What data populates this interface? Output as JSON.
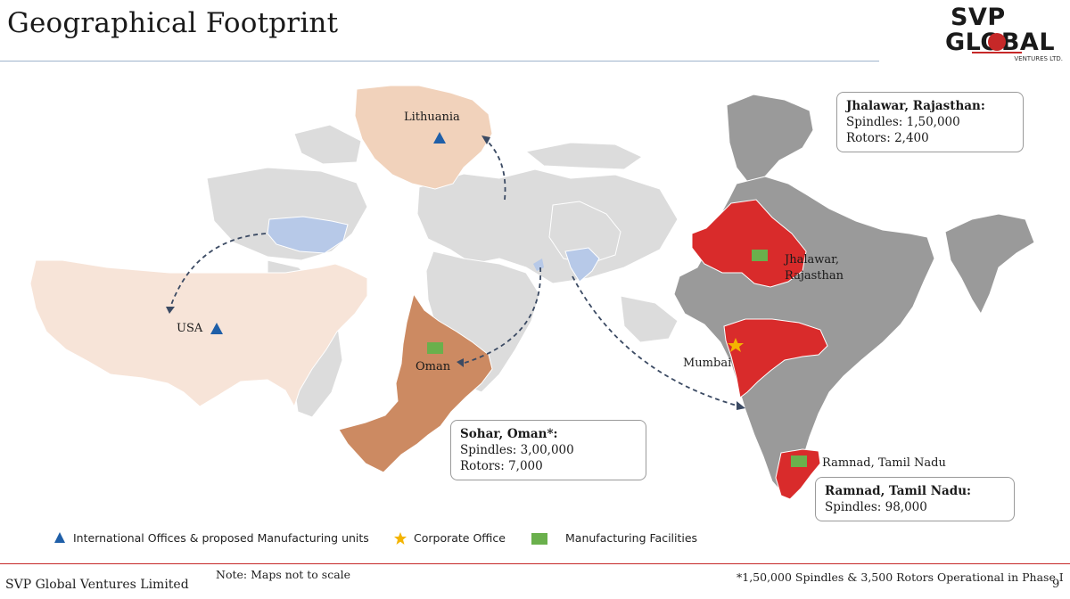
{
  "header": {
    "title": "Geographical Footprint"
  },
  "logo": {
    "line1": "SVP",
    "line2": "GLOBAL",
    "line3": "VENTURES LTD."
  },
  "map_labels": {
    "lithuania": "Lithuania",
    "usa": "USA",
    "oman": "Oman",
    "jhalawar_line1": "Jhalawar,",
    "jhalawar_line2": "Rajasthan",
    "mumbai": "Mumbai",
    "ramnad": "Ramnad, Tamil Nadu"
  },
  "callouts": {
    "jhalawar": {
      "title": "Jhalawar, Rajasthan:",
      "line1": "Spindles: 1,50,000",
      "line2": "Rotors: 2,400"
    },
    "sohar": {
      "title": "Sohar, Oman*:",
      "line1": "Spindles: 3,00,000",
      "line2": "Rotors: 7,000"
    },
    "ramnad": {
      "title": "Ramnad, Tamil Nadu:",
      "line1": "Spindles: 98,000"
    }
  },
  "legend": {
    "international": "International Offices & proposed Manufacturing units",
    "corporate": "Corporate Office",
    "manufacturing": "Manufacturing Facilities"
  },
  "footer": {
    "company": "SVP Global Ventures Limited",
    "note": "Note: Maps not to scale",
    "phase": "*1,50,000 Spindles & 3,500 Rotors Operational in Phase I",
    "page": "9"
  },
  "colors": {
    "world": "#dcdcdc",
    "usa_peach": "#f7e4d8",
    "lithuania": "#f1d2bb",
    "oman": "#cc8a62",
    "india": "#9a9a9a",
    "highlight_red": "#d92b2b",
    "usa_highlight": "#b7c9e8",
    "marker_blue": "#1f5fa8",
    "marker_green": "#6ab04c",
    "marker_star": "#f4b400"
  }
}
